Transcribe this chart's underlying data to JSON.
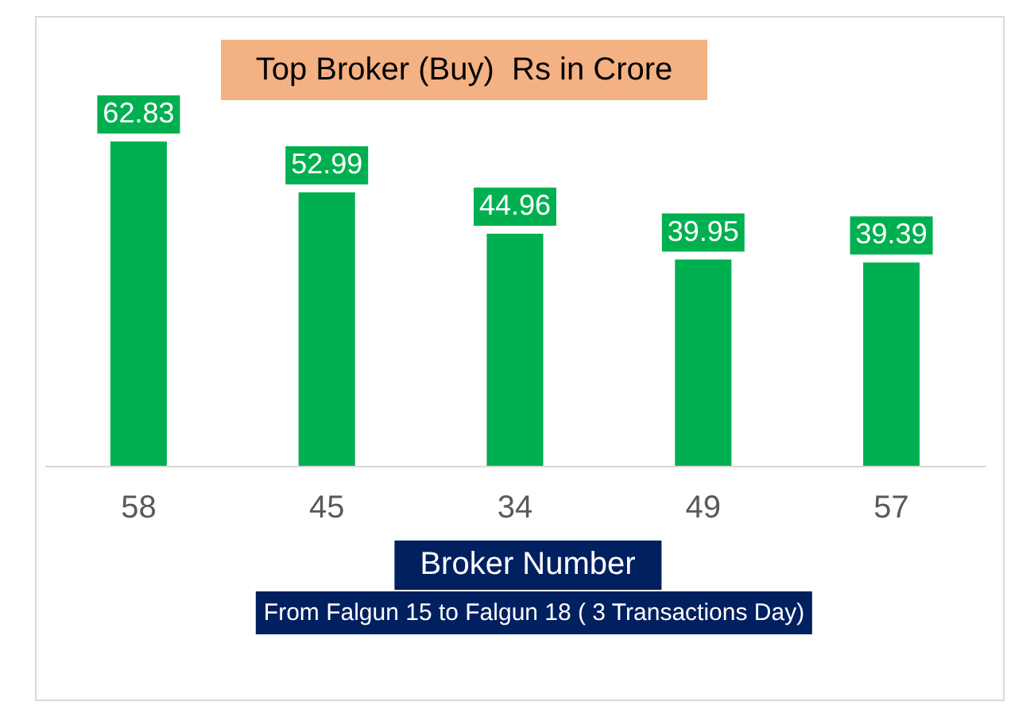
{
  "chart_data": {
    "type": "bar",
    "title": "Top Broker (Buy)  Rs in Crore",
    "xlabel": "Broker Number",
    "annotations": [
      "From Falgun 15 to Falgun 18 ( 3 Transactions Day)"
    ],
    "categories": [
      "58",
      "45",
      "34",
      "49",
      "57"
    ],
    "values": [
      62.83,
      52.99,
      44.96,
      39.95,
      39.39
    ],
    "color": "#00b050",
    "data_labels": true
  }
}
